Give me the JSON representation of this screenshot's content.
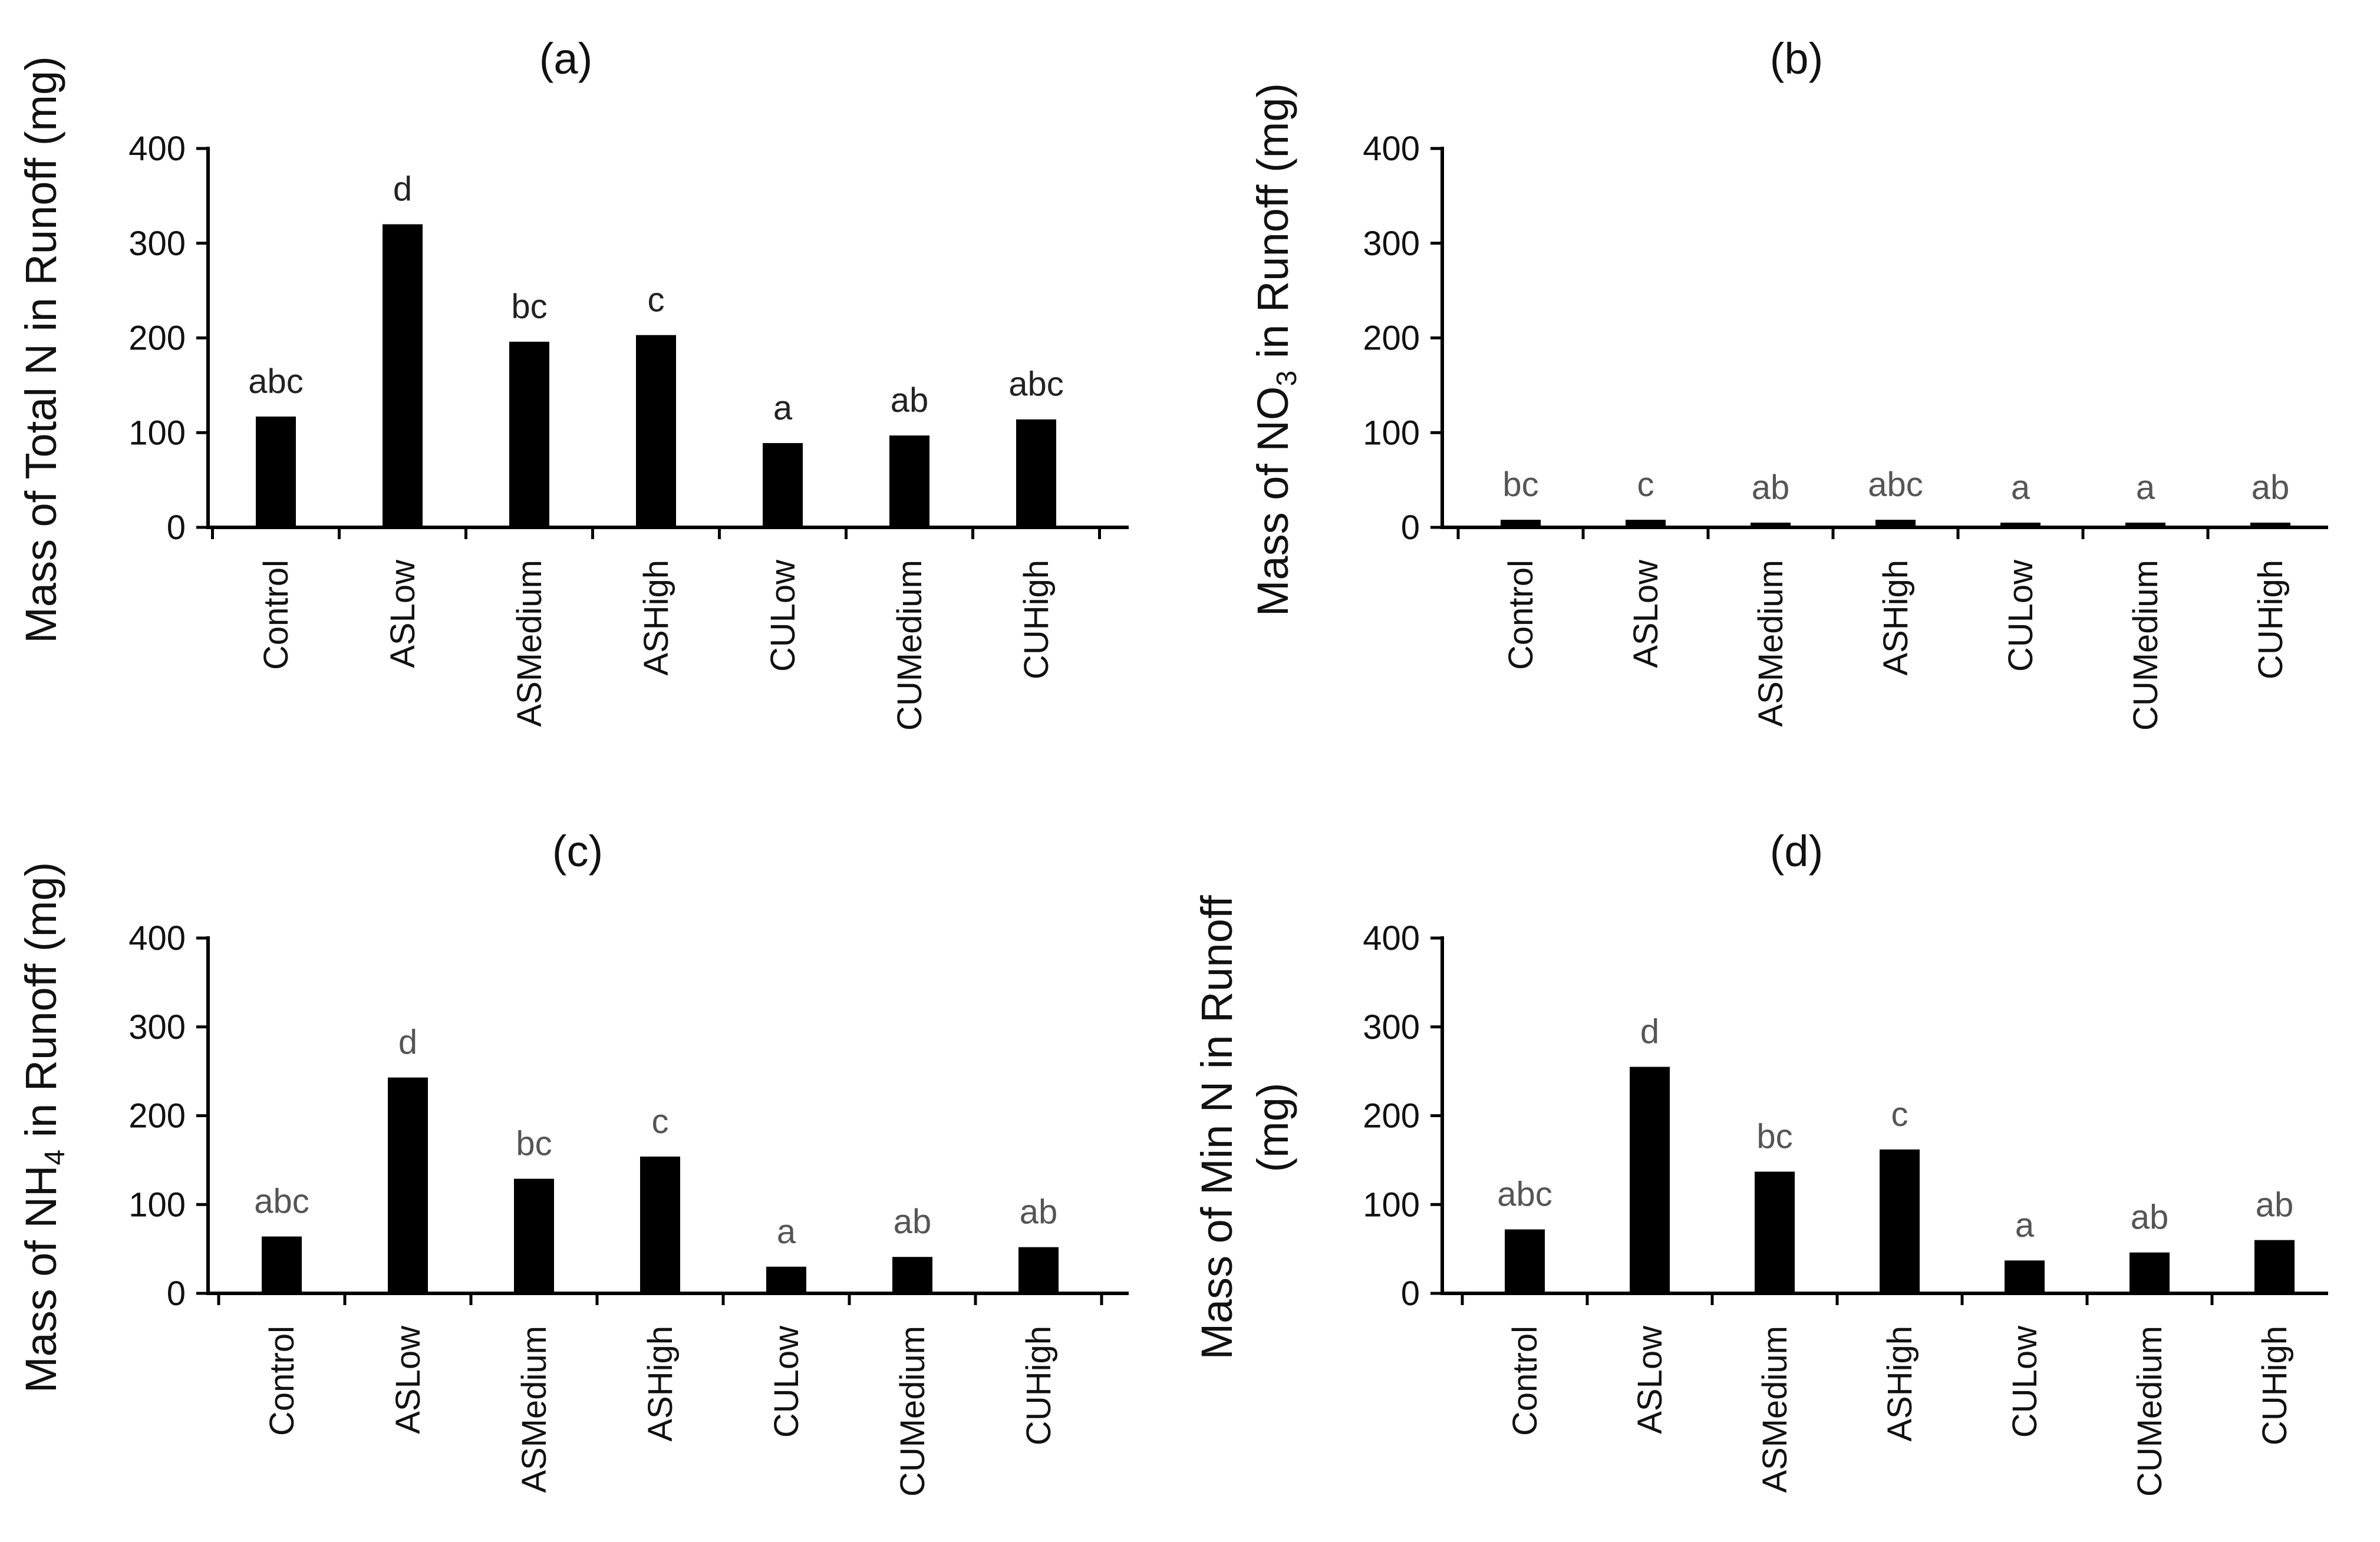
{
  "chart_data": [
    {
      "panel": "(a)",
      "type": "bar",
      "title": "(a)",
      "ylabel": "Mass of Total N in Runoff (mg)",
      "ylim": [
        0,
        400
      ],
      "yticks": [
        0,
        100,
        200,
        300,
        400
      ],
      "categories": [
        "Control",
        "ASLow",
        "ASMedium",
        "ASHigh",
        "CULow",
        "CUMedium",
        "CUHigh"
      ],
      "values": [
        117,
        320,
        196,
        203,
        89,
        97,
        114
      ],
      "significance": [
        "abc",
        "d",
        "bc",
        "c",
        "a",
        "ab",
        "abc"
      ]
    },
    {
      "panel": "(b)",
      "type": "bar",
      "title": "(b)",
      "ylabel_parts": [
        "Mass of NO",
        "3",
        " in Runoff (mg)"
      ],
      "ylim": [
        0,
        400
      ],
      "yticks": [
        0,
        100,
        200,
        300,
        400
      ],
      "categories": [
        "Control",
        "ASLow",
        "ASMedium",
        "ASHigh",
        "CULow",
        "CUMedium",
        "CUHigh"
      ],
      "values": [
        8,
        8,
        5,
        8,
        5,
        5,
        5
      ],
      "significance": [
        "bc",
        "c",
        "ab",
        "abc",
        "a",
        "a",
        "ab"
      ]
    },
    {
      "panel": "(c)",
      "type": "bar",
      "title": "(c)",
      "ylabel_parts": [
        "Mass of NH",
        "4",
        " in Runoff (mg)"
      ],
      "ylim": [
        0,
        400
      ],
      "yticks": [
        0,
        100,
        200,
        300,
        400
      ],
      "categories": [
        "Control",
        "ASLow",
        "ASMedium",
        "ASHigh",
        "CULow",
        "CUMedium",
        "CUHigh"
      ],
      "values": [
        64,
        243,
        129,
        154,
        30,
        41,
        52
      ],
      "significance": [
        "abc",
        "d",
        "bc",
        "c",
        "a",
        "ab",
        "ab"
      ]
    },
    {
      "panel": "(d)",
      "type": "bar",
      "title": "(d)",
      "ylabel_lines": [
        "Mass of Min N in Runoff",
        "(mg)"
      ],
      "ylim": [
        0,
        400
      ],
      "yticks": [
        0,
        100,
        200,
        300,
        400
      ],
      "categories": [
        "Control",
        "ASLow",
        "ASMedium",
        "ASHigh",
        "CULow",
        "CUMedium",
        "CUHigh"
      ],
      "values": [
        72,
        255,
        137,
        162,
        37,
        46,
        60
      ],
      "significance": [
        "abc",
        "d",
        "bc",
        "c",
        "a",
        "ab",
        "ab"
      ]
    }
  ]
}
